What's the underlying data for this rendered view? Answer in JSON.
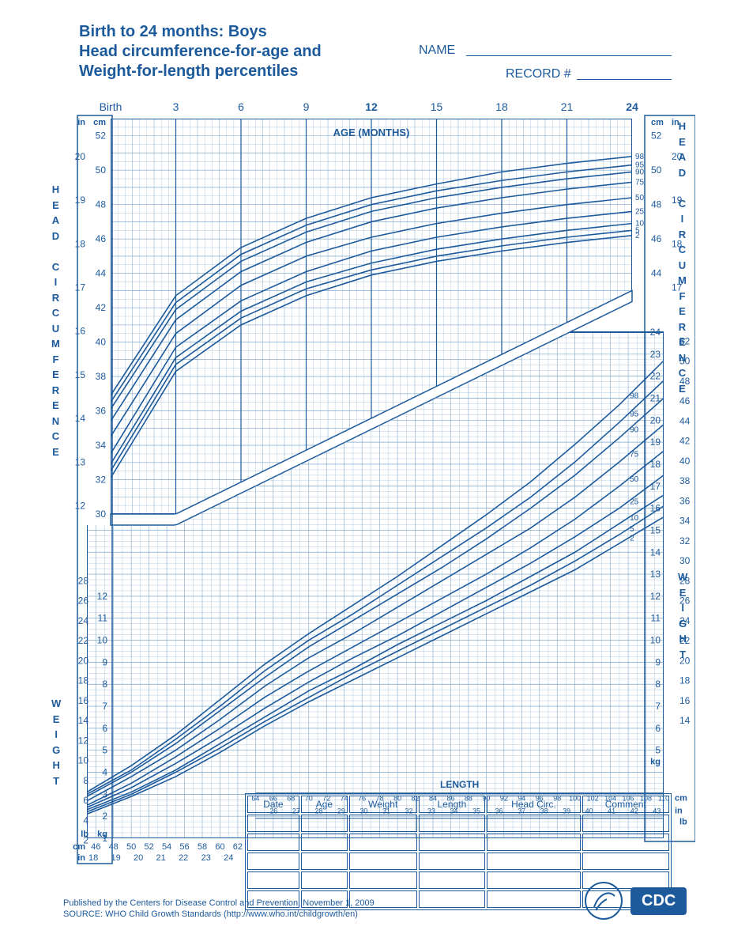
{
  "title_l1": "Birth to 24 months: Boys",
  "title_l2": "Head circumference-for-age and",
  "title_l3": "Weight-for-length percentiles",
  "name_label": "NAME",
  "record_label": "RECORD #",
  "side_labels": {
    "hc": "HEAD CIRCUMFERENCE",
    "wt": "WEIGHT"
  },
  "chart": {
    "colors": {
      "ink": "#1c5a9c",
      "grid_minor": "#7fa8cc",
      "grid_major": "#1c5a9c",
      "curve": "#1c5a9c",
      "bg": "#ffffff"
    },
    "top": {
      "title": "AGE (MONTHS)",
      "x": {
        "min": 0,
        "max": 24,
        "majors": [
          0,
          3,
          6,
          9,
          12,
          15,
          18,
          21,
          24
        ],
        "birth_label": "Birth",
        "label_fontsize": 14,
        "bold_at": [
          12,
          24
        ]
      },
      "y_cm": {
        "min": 30,
        "max": 53,
        "ticks": [
          30,
          32,
          34,
          36,
          38,
          40,
          42,
          44,
          46,
          48,
          50,
          52
        ],
        "unit": "cm"
      },
      "y_in": {
        "min": 12,
        "max": 21,
        "ticks": [
          12,
          13,
          14,
          15,
          16,
          17,
          18,
          19,
          20
        ],
        "unit": "in"
      },
      "percentile_labels": [
        "2",
        "5",
        "10",
        "25",
        "50",
        "75",
        "90",
        "95",
        "98"
      ],
      "curves": [
        {
          "p": 2,
          "pts": [
            [
              0,
              32.1
            ],
            [
              3,
              38.3
            ],
            [
              6,
              41.0
            ],
            [
              9,
              42.7
            ],
            [
              12,
              43.9
            ],
            [
              15,
              44.7
            ],
            [
              18,
              45.3
            ],
            [
              21,
              45.8
            ],
            [
              24,
              46.2
            ]
          ]
        },
        {
          "p": 5,
          "pts": [
            [
              0,
              32.5
            ],
            [
              3,
              38.7
            ],
            [
              6,
              41.4
            ],
            [
              9,
              43.1
            ],
            [
              12,
              44.2
            ],
            [
              15,
              45.0
            ],
            [
              18,
              45.6
            ],
            [
              21,
              46.1
            ],
            [
              24,
              46.5
            ]
          ]
        },
        {
          "p": 10,
          "pts": [
            [
              0,
              32.9
            ],
            [
              3,
              39.1
            ],
            [
              6,
              41.8
            ],
            [
              9,
              43.5
            ],
            [
              12,
              44.6
            ],
            [
              15,
              45.4
            ],
            [
              18,
              46.0
            ],
            [
              21,
              46.5
            ],
            [
              24,
              46.9
            ]
          ]
        },
        {
          "p": 25,
          "pts": [
            [
              0,
              33.5
            ],
            [
              3,
              39.7
            ],
            [
              6,
              42.4
            ],
            [
              9,
              44.1
            ],
            [
              12,
              45.3
            ],
            [
              15,
              46.1
            ],
            [
              18,
              46.7
            ],
            [
              21,
              47.2
            ],
            [
              24,
              47.6
            ]
          ]
        },
        {
          "p": 50,
          "pts": [
            [
              0,
              34.5
            ],
            [
              3,
              40.5
            ],
            [
              6,
              43.3
            ],
            [
              9,
              45.0
            ],
            [
              12,
              46.1
            ],
            [
              15,
              46.9
            ],
            [
              18,
              47.5
            ],
            [
              21,
              48.0
            ],
            [
              24,
              48.4
            ]
          ]
        },
        {
          "p": 75,
          "pts": [
            [
              0,
              35.4
            ],
            [
              3,
              41.3
            ],
            [
              6,
              44.1
            ],
            [
              9,
              45.8
            ],
            [
              12,
              47.0
            ],
            [
              15,
              47.8
            ],
            [
              18,
              48.4
            ],
            [
              21,
              48.9
            ],
            [
              24,
              49.3
            ]
          ]
        },
        {
          "p": 90,
          "pts": [
            [
              0,
              36.1
            ],
            [
              3,
              41.9
            ],
            [
              6,
              44.7
            ],
            [
              9,
              46.4
            ],
            [
              12,
              47.6
            ],
            [
              15,
              48.4
            ],
            [
              18,
              49.0
            ],
            [
              21,
              49.5
            ],
            [
              24,
              49.9
            ]
          ]
        },
        {
          "p": 95,
          "pts": [
            [
              0,
              36.5
            ],
            [
              3,
              42.3
            ],
            [
              6,
              45.1
            ],
            [
              9,
              46.8
            ],
            [
              12,
              48.0
            ],
            [
              15,
              48.8
            ],
            [
              18,
              49.4
            ],
            [
              21,
              49.9
            ],
            [
              24,
              50.3
            ]
          ]
        },
        {
          "p": 98,
          "pts": [
            [
              0,
              36.9
            ],
            [
              3,
              42.7
            ],
            [
              6,
              45.5
            ],
            [
              9,
              47.2
            ],
            [
              12,
              48.4
            ],
            [
              15,
              49.2
            ],
            [
              18,
              49.9
            ],
            [
              21,
              50.4
            ],
            [
              24,
              50.8
            ]
          ]
        }
      ]
    },
    "bottom": {
      "title": "LENGTH",
      "x_cm": {
        "min": 45,
        "min_region2": 64,
        "max": 110,
        "ticks_r1": [
          46,
          48,
          50,
          52,
          54,
          56,
          58,
          60,
          62
        ],
        "ticks_r2": [
          64,
          66,
          68,
          70,
          72,
          74,
          76,
          78,
          80,
          82,
          84,
          86,
          88,
          90,
          92,
          94,
          96,
          98,
          100,
          102,
          104,
          106,
          108,
          110
        ],
        "unit": "cm"
      },
      "x_in": {
        "ticks_r1": [
          18,
          19,
          20,
          21,
          22,
          23,
          24
        ],
        "ticks_r2": [
          26,
          27,
          28,
          29,
          30,
          31,
          32,
          33,
          34,
          35,
          36,
          37,
          38,
          39,
          40,
          41,
          42,
          43
        ],
        "unit": "in"
      },
      "y_kg": {
        "min": 1,
        "max": 24,
        "ticks_l": [
          1,
          2,
          3,
          4,
          5,
          6,
          7,
          8,
          9,
          10,
          11,
          12
        ],
        "ticks_r": [
          5,
          6,
          7,
          8,
          9,
          10,
          11,
          12,
          13,
          14,
          15,
          16,
          17,
          18,
          19,
          20,
          21,
          22,
          23,
          24
        ],
        "unit": "kg"
      },
      "y_lb": {
        "ticks_l": [
          2,
          4,
          6,
          8,
          10,
          12,
          14,
          16,
          18,
          20,
          22,
          24,
          26,
          28
        ],
        "ticks_r": [
          14,
          16,
          18,
          20,
          22,
          24,
          26,
          28,
          30,
          32,
          34,
          36,
          38,
          40,
          42,
          44,
          46,
          48,
          50,
          52
        ],
        "unit": "lb"
      },
      "percentile_labels": [
        "2",
        "5",
        "10",
        "25",
        "50",
        "75",
        "90",
        "95",
        "98"
      ],
      "curves": [
        {
          "p": 2,
          "pts": [
            [
              45,
              2.1
            ],
            [
              50,
              2.9
            ],
            [
              55,
              3.8
            ],
            [
              60,
              4.9
            ],
            [
              65,
              6.1
            ],
            [
              70,
              7.2
            ],
            [
              75,
              8.2
            ],
            [
              80,
              9.2
            ],
            [
              85,
              10.2
            ],
            [
              90,
              11.2
            ],
            [
              95,
              12.2
            ],
            [
              100,
              13.2
            ],
            [
              105,
              14.4
            ],
            [
              110,
              15.6
            ]
          ]
        },
        {
          "p": 5,
          "pts": [
            [
              45,
              2.2
            ],
            [
              50,
              3.0
            ],
            [
              55,
              4.0
            ],
            [
              60,
              5.1
            ],
            [
              65,
              6.3
            ],
            [
              70,
              7.4
            ],
            [
              75,
              8.5
            ],
            [
              80,
              9.5
            ],
            [
              85,
              10.5
            ],
            [
              90,
              11.5
            ],
            [
              95,
              12.5
            ],
            [
              100,
              13.6
            ],
            [
              105,
              14.8
            ],
            [
              110,
              16.1
            ]
          ]
        },
        {
          "p": 10,
          "pts": [
            [
              45,
              2.3
            ],
            [
              50,
              3.1
            ],
            [
              55,
              4.1
            ],
            [
              60,
              5.3
            ],
            [
              65,
              6.5
            ],
            [
              70,
              7.7
            ],
            [
              75,
              8.7
            ],
            [
              80,
              9.8
            ],
            [
              85,
              10.8
            ],
            [
              90,
              11.8
            ],
            [
              95,
              12.9
            ],
            [
              100,
              14.0
            ],
            [
              105,
              15.3
            ],
            [
              110,
              16.6
            ]
          ]
        },
        {
          "p": 25,
          "pts": [
            [
              45,
              2.4
            ],
            [
              50,
              3.3
            ],
            [
              55,
              4.4
            ],
            [
              60,
              5.6
            ],
            [
              65,
              6.9
            ],
            [
              70,
              8.1
            ],
            [
              75,
              9.2
            ],
            [
              80,
              10.2
            ],
            [
              85,
              11.3
            ],
            [
              90,
              12.4
            ],
            [
              95,
              13.5
            ],
            [
              100,
              14.7
            ],
            [
              105,
              16.0
            ],
            [
              110,
              17.5
            ]
          ]
        },
        {
          "p": 50,
          "pts": [
            [
              45,
              2.5
            ],
            [
              50,
              3.5
            ],
            [
              55,
              4.7
            ],
            [
              60,
              6.0
            ],
            [
              65,
              7.4
            ],
            [
              70,
              8.6
            ],
            [
              75,
              9.7
            ],
            [
              80,
              10.8
            ],
            [
              85,
              11.9
            ],
            [
              90,
              13.0
            ],
            [
              95,
              14.2
            ],
            [
              100,
              15.5
            ],
            [
              105,
              17.0
            ],
            [
              110,
              18.6
            ]
          ]
        },
        {
          "p": 75,
          "pts": [
            [
              45,
              2.7
            ],
            [
              50,
              3.8
            ],
            [
              55,
              5.0
            ],
            [
              60,
              6.4
            ],
            [
              65,
              7.9
            ],
            [
              70,
              9.2
            ],
            [
              75,
              10.3
            ],
            [
              80,
              11.5
            ],
            [
              85,
              12.7
            ],
            [
              90,
              13.9
            ],
            [
              95,
              15.1
            ],
            [
              100,
              16.5
            ],
            [
              105,
              18.1
            ],
            [
              110,
              19.8
            ]
          ]
        },
        {
          "p": 90,
          "pts": [
            [
              45,
              2.9
            ],
            [
              50,
              4.0
            ],
            [
              55,
              5.3
            ],
            [
              60,
              6.8
            ],
            [
              65,
              8.3
            ],
            [
              70,
              9.7
            ],
            [
              75,
              10.9
            ],
            [
              80,
              12.1
            ],
            [
              85,
              13.3
            ],
            [
              90,
              14.6
            ],
            [
              95,
              16.0
            ],
            [
              100,
              17.5
            ],
            [
              105,
              19.2
            ],
            [
              110,
              21.0
            ]
          ]
        },
        {
          "p": 95,
          "pts": [
            [
              45,
              3.0
            ],
            [
              50,
              4.1
            ],
            [
              55,
              5.5
            ],
            [
              60,
              7.0
            ],
            [
              65,
              8.6
            ],
            [
              70,
              10.0
            ],
            [
              75,
              11.2
            ],
            [
              80,
              12.5
            ],
            [
              85,
              13.8
            ],
            [
              90,
              15.1
            ],
            [
              95,
              16.5
            ],
            [
              100,
              18.1
            ],
            [
              105,
              19.9
            ],
            [
              110,
              21.8
            ]
          ]
        },
        {
          "p": 98,
          "pts": [
            [
              45,
              3.1
            ],
            [
              50,
              4.3
            ],
            [
              55,
              5.7
            ],
            [
              60,
              7.3
            ],
            [
              65,
              8.9
            ],
            [
              70,
              10.3
            ],
            [
              75,
              11.6
            ],
            [
              80,
              12.9
            ],
            [
              85,
              14.3
            ],
            [
              90,
              15.7
            ],
            [
              95,
              17.2
            ],
            [
              100,
              18.9
            ],
            [
              105,
              20.7
            ],
            [
              110,
              22.7
            ]
          ]
        }
      ]
    }
  },
  "table": {
    "headers": [
      "Date",
      "Age",
      "Weight",
      "Length",
      "Head Circ.",
      "Comment"
    ],
    "rows": 5
  },
  "footer_l1": "Published by the Centers for Disease Control and Prevention, November 1, 2009",
  "footer_l2": "SOURCE:  WHO Child Growth Standards (http://www.who.int/childgrowth/en)",
  "cdc_label": "CDC"
}
